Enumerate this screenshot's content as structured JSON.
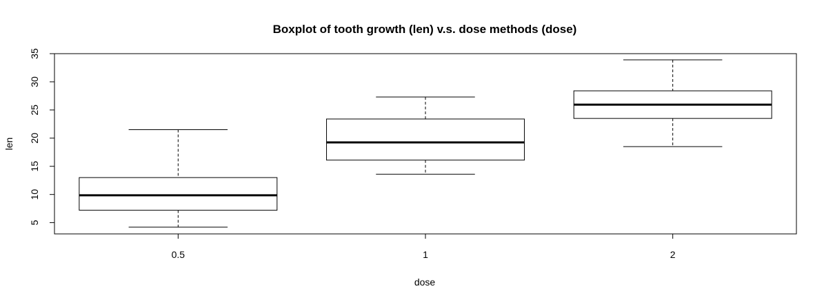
{
  "chart_data": {
    "type": "boxplot",
    "title": "Boxplot of tooth growth (len) v.s. dose methods (dose)",
    "xlabel": "dose",
    "ylabel": "len",
    "categories": [
      "0.5",
      "1",
      "2"
    ],
    "ylim": [
      3.0,
      35.0
    ],
    "yticks": [
      5,
      10,
      15,
      20,
      25,
      30,
      35
    ],
    "grid": false,
    "boxes": [
      {
        "category": "0.5",
        "whisker_low": 4.2,
        "q1": 7.2,
        "median": 9.85,
        "q3": 13.0,
        "whisker_high": 21.5
      },
      {
        "category": "1",
        "whisker_low": 13.6,
        "q1": 16.1,
        "median": 19.25,
        "q3": 23.4,
        "whisker_high": 27.3
      },
      {
        "category": "2",
        "whisker_low": 18.5,
        "q1": 23.5,
        "median": 25.95,
        "q3": 28.4,
        "whisker_high": 33.9
      }
    ]
  }
}
